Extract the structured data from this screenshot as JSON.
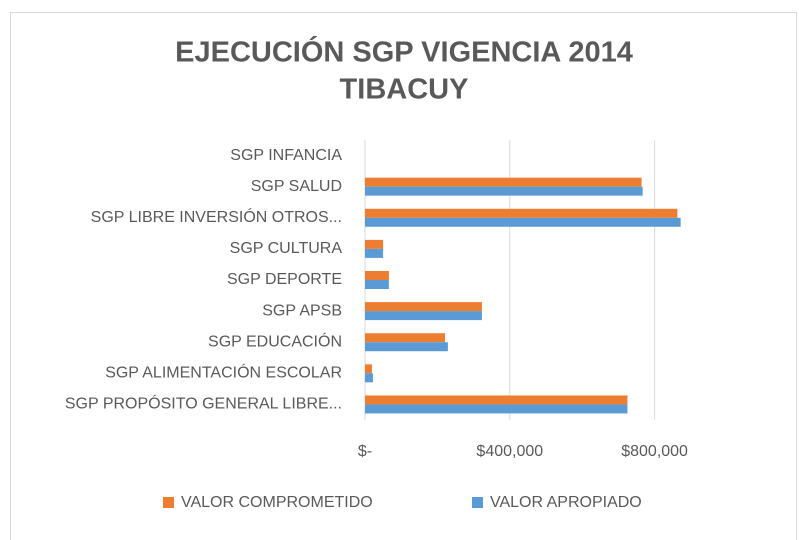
{
  "chart_data": {
    "type": "bar",
    "orientation": "horizontal",
    "title": [
      "EJECUCIÓN SGP VIGENCIA 2014",
      "TIBACUY"
    ],
    "categories": [
      "SGP INFANCIA",
      "SGP SALUD",
      "SGP  LIBRE INVERSIÓN OTROS...",
      "SGP CULTURA",
      "SGP DEPORTE",
      "SGP APSB",
      "SGP EDUCACIÓN",
      "SGP ALIMENTACIÓN ESCOLAR",
      "SGP PROPÓSITO GENERAL LIBRE..."
    ],
    "series": [
      {
        "name": "VALOR COMPROMETIDO",
        "color": "#ed7d31",
        "values": [
          0,
          764000,
          863000,
          50000,
          66000,
          323000,
          221000,
          19000,
          725000
        ]
      },
      {
        "name": "VALOR APROPIADO",
        "color": "#5b9bd5",
        "values": [
          0,
          767000,
          872000,
          50000,
          66000,
          323000,
          229000,
          22000,
          725000
        ]
      }
    ],
    "xlim": [
      0,
      1000000
    ],
    "xticks": [
      {
        "value": 0,
        "label": "$-"
      },
      {
        "value": 400000,
        "label": "$400,000"
      },
      {
        "value": 800000,
        "label": "$800,000"
      }
    ],
    "grid": true,
    "legend": "bottom"
  }
}
